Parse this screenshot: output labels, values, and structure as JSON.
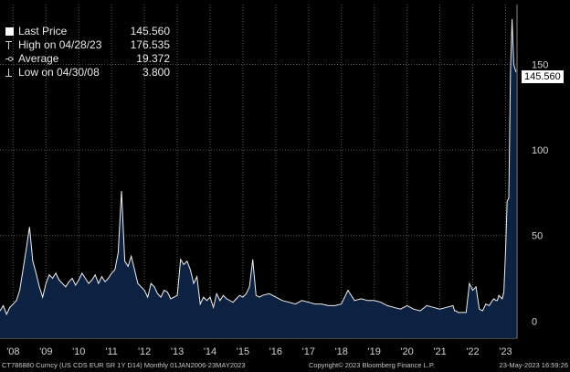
{
  "legend": {
    "last_price": {
      "label": "Last Price",
      "value": "145.560"
    },
    "high": {
      "label": "High on 04/28/23",
      "value": "176.535"
    },
    "average": {
      "label": "Average",
      "value": "19.372"
    },
    "low": {
      "label": "Low on 04/30/08",
      "value": "3.800"
    }
  },
  "last_badge": "145.560",
  "footer": {
    "ticker": "CT786880 Curncy (US CDS EUR SR 1Y D14) Monthly 01JAN2006-23MAY2023",
    "copyright": "Copyright© 2023 Bloomberg Finance L.P.",
    "timestamp": "23-May-2023 16:59:26"
  },
  "colors": {
    "background": "#000000",
    "area_fill": "#0d2240",
    "line": "#f0f0f0",
    "grid": "#5a5a5a",
    "axis_text": "#d0d0d0"
  },
  "chart_data": {
    "type": "area",
    "title": "",
    "xlabel": "",
    "ylabel": "",
    "ylim": [
      -10,
      185
    ],
    "yticks": [
      0,
      50,
      100,
      150
    ],
    "xlim": [
      2007.6,
      2023.35
    ],
    "xtick_labels": [
      "'08",
      "'09",
      "'10",
      "'11",
      "'12",
      "'13",
      "'14",
      "'15",
      "'16",
      "'17",
      "'18",
      "'19",
      "'20",
      "'21",
      "'22",
      "'23"
    ],
    "xtick_positions": [
      2008,
      2009,
      2010,
      2011,
      2012,
      2013,
      2014,
      2015,
      2016,
      2017,
      2018,
      2019,
      2020,
      2021,
      2022,
      2023
    ],
    "grid": true,
    "series": [
      {
        "x": [
          2007.6,
          2007.7,
          2007.8,
          2007.9,
          2008.0,
          2008.1,
          2008.2,
          2008.3,
          2008.4,
          2008.5,
          2008.6,
          2008.7,
          2008.8,
          2008.9,
          2009.0,
          2009.1,
          2009.2,
          2009.3,
          2009.4,
          2009.5,
          2009.6,
          2009.7,
          2009.8,
          2009.9,
          2010.0,
          2010.1,
          2010.2,
          2010.3,
          2010.4,
          2010.5,
          2010.6,
          2010.7,
          2010.8,
          2010.9,
          2011.0,
          2011.1,
          2011.2,
          2011.3,
          2011.4,
          2011.5,
          2011.6,
          2011.7,
          2011.8,
          2011.9,
          2012.0,
          2012.1,
          2012.2,
          2012.3,
          2012.4,
          2012.5,
          2012.6,
          2012.7,
          2012.8,
          2012.9,
          2013.0,
          2013.1,
          2013.2,
          2013.3,
          2013.4,
          2013.5,
          2013.6,
          2013.7,
          2013.8,
          2013.9,
          2014.0,
          2014.1,
          2014.2,
          2014.3,
          2014.4,
          2014.5,
          2014.6,
          2014.7,
          2014.8,
          2014.9,
          2015.0,
          2015.1,
          2015.2,
          2015.3,
          2015.4,
          2015.5,
          2015.6,
          2015.8,
          2016.0,
          2016.2,
          2016.4,
          2016.6,
          2016.8,
          2017.0,
          2017.2,
          2017.4,
          2017.6,
          2017.8,
          2018.0,
          2018.2,
          2018.4,
          2018.6,
          2018.8,
          2019.0,
          2019.2,
          2019.4,
          2019.6,
          2019.8,
          2020.0,
          2020.2,
          2020.4,
          2020.6,
          2020.8,
          2021.0,
          2021.2,
          2021.4,
          2021.45,
          2021.5,
          2021.55,
          2021.6,
          2021.7,
          2021.8,
          2021.9,
          2022.0,
          2022.1,
          2022.2,
          2022.3,
          2022.4,
          2022.5,
          2022.6,
          2022.65,
          2022.7,
          2022.75,
          2022.8,
          2022.85,
          2022.9,
          2022.95,
          2023.0,
          2023.05,
          2023.1,
          2023.15,
          2023.2,
          2023.25,
          2023.32
        ],
        "y": [
          6,
          9,
          4,
          8,
          10,
          12,
          18,
          30,
          42,
          55,
          35,
          28,
          20,
          14,
          22,
          27,
          25,
          28,
          24,
          22,
          20,
          23,
          25,
          21,
          24,
          28,
          25,
          22,
          24,
          27,
          22,
          26,
          23,
          25,
          28,
          30,
          40,
          76,
          35,
          32,
          38,
          30,
          22,
          20,
          18,
          14,
          22,
          20,
          16,
          14,
          18,
          17,
          13,
          14,
          15,
          36,
          33,
          35,
          30,
          22,
          26,
          10,
          14,
          12,
          14,
          8,
          16,
          12,
          15,
          13,
          12,
          11,
          13,
          15,
          14,
          16,
          20,
          36,
          15,
          14,
          15,
          16,
          14,
          12,
          11,
          10,
          12,
          11,
          10,
          10,
          9,
          9,
          10,
          18,
          12,
          13,
          12,
          12,
          11,
          9,
          8,
          7,
          9,
          7,
          6,
          9,
          8,
          7,
          8,
          9,
          6,
          6,
          5,
          5,
          5,
          5,
          22,
          18,
          20,
          7,
          6,
          10,
          9,
          12,
          13,
          12,
          12,
          15,
          14,
          13,
          17,
          40,
          70,
          72,
          145,
          176.5,
          150,
          145.56
        ]
      }
    ]
  }
}
